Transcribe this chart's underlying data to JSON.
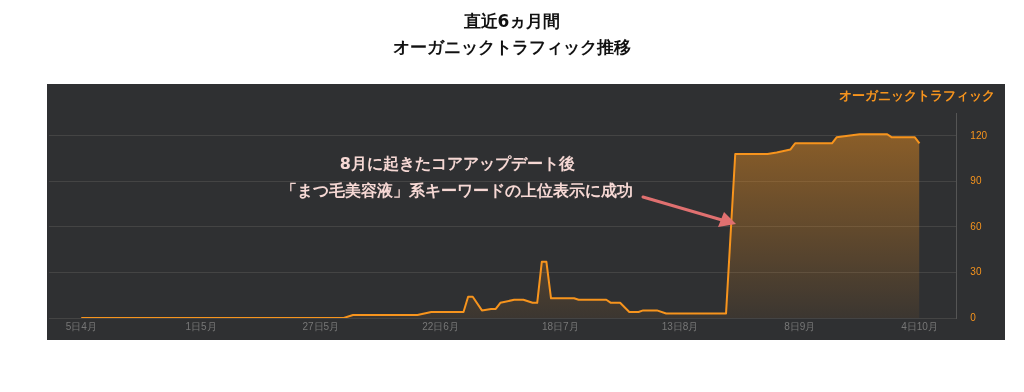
{
  "chart_data": {
    "type": "area",
    "title": "直近6ヵ月間",
    "subtitle": "オーガニックトラフィック推移",
    "annotations": [
      "8月に起きたコアアップデート後",
      "「まつ毛美容液」系キーワードの上位表示に成功"
    ],
    "x": [
      "--04-05",
      "--06-01",
      "--06-03",
      "--06-17",
      "--06-20",
      "--06-27",
      "--06-28",
      "--06-29",
      "--07-01",
      "--07-03",
      "--07-04",
      "--07-05",
      "--07-08",
      "--07-10",
      "--07-12",
      "--07-13",
      "--07-14",
      "--07-15",
      "--07-16",
      "--07-21",
      "--07-22",
      "--07-28",
      "--07-29",
      "--07-31",
      "--08-02",
      "--08-04",
      "--08-05",
      "--08-08",
      "--08-10",
      "--08-23",
      "--08-25",
      "--09-01",
      "--09-03",
      "--09-06",
      "--09-07",
      "--09-15",
      "--09-16",
      "--09-21",
      "--09-27",
      "--09-28",
      "--10-03",
      "--10-04"
    ],
    "series": [
      {
        "name": "オーガニックトラフィック",
        "color": "#f7941d",
        "values": [
          0,
          0,
          2,
          2,
          4,
          4,
          14,
          14,
          5,
          6,
          6,
          10,
          12,
          12,
          10,
          10,
          37,
          37,
          13,
          13,
          12,
          12,
          10,
          10,
          4,
          4,
          5,
          5,
          3,
          3,
          108,
          108,
          109,
          111,
          115,
          115,
          119,
          121,
          121,
          119,
          119,
          115
        ]
      }
    ],
    "xlim": [
      "--03-29",
      "--10-12"
    ],
    "xticks": [
      {
        "value": "--04-05",
        "label": "5日4月"
      },
      {
        "value": "--05-01",
        "label": "1日5月"
      },
      {
        "value": "--05-27",
        "label": "27日5月"
      },
      {
        "value": "--06-22",
        "label": "22日6月"
      },
      {
        "value": "--07-18",
        "label": "18日7月"
      },
      {
        "value": "--08-13",
        "label": "13日8月"
      },
      {
        "value": "--09-08",
        "label": "8日9月"
      },
      {
        "value": "--10-04",
        "label": "4日10月"
      }
    ],
    "ylim": [
      0,
      135
    ],
    "yticks": [
      0,
      30,
      60,
      90,
      120
    ],
    "grid": "y",
    "legend": "top right",
    "marker": "none",
    "line_style": "solid"
  }
}
